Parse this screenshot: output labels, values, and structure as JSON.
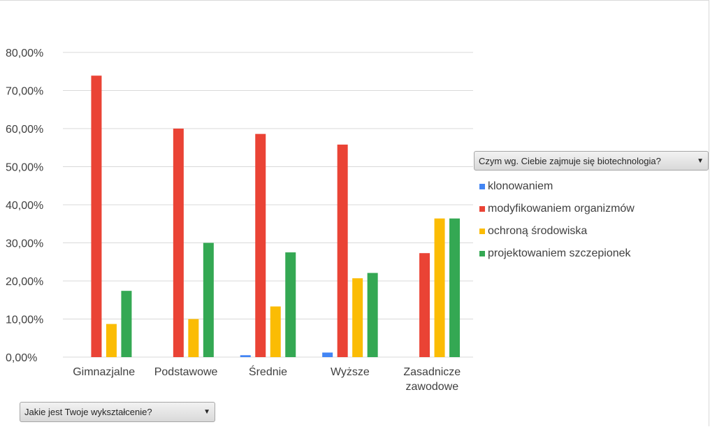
{
  "chart_data": {
    "type": "bar",
    "categories": [
      "Gimnazjalne",
      "Podstawowe",
      "Średnie",
      "Wyższe",
      "Zasadnicze\nzawodowe"
    ],
    "series": [
      {
        "name": "klonowaniem",
        "color": "#4285f4",
        "values": [
          0,
          0,
          0.5,
          1.2,
          0
        ]
      },
      {
        "name": "modyfikowaniem organizmów",
        "color": "#ea4335",
        "values": [
          73.9,
          60.0,
          58.6,
          55.8,
          27.3
        ]
      },
      {
        "name": "ochroną środowiska",
        "color": "#fbbc04",
        "values": [
          8.7,
          10.0,
          13.3,
          20.7,
          36.4
        ]
      },
      {
        "name": "projektowaniem szczepionek",
        "color": "#34a853",
        "values": [
          17.4,
          30.0,
          27.5,
          22.1,
          36.4
        ]
      }
    ],
    "y_ticks": [
      "0,00%",
      "10,00%",
      "20,00%",
      "30,00%",
      "40,00%",
      "50,00%",
      "60,00%",
      "70,00%",
      "80,00%"
    ],
    "ylim": [
      0,
      80
    ],
    "grid": true,
    "legend_position": "right"
  },
  "legend_filter": {
    "label": "Czym wg. Ciebie zajmuje się biotechnologia?",
    "icon": "dropdown-arrow-icon"
  },
  "row_filter": {
    "label": "Jakie jest Twoje wykształcenie?",
    "icon": "dropdown-arrow-icon"
  }
}
